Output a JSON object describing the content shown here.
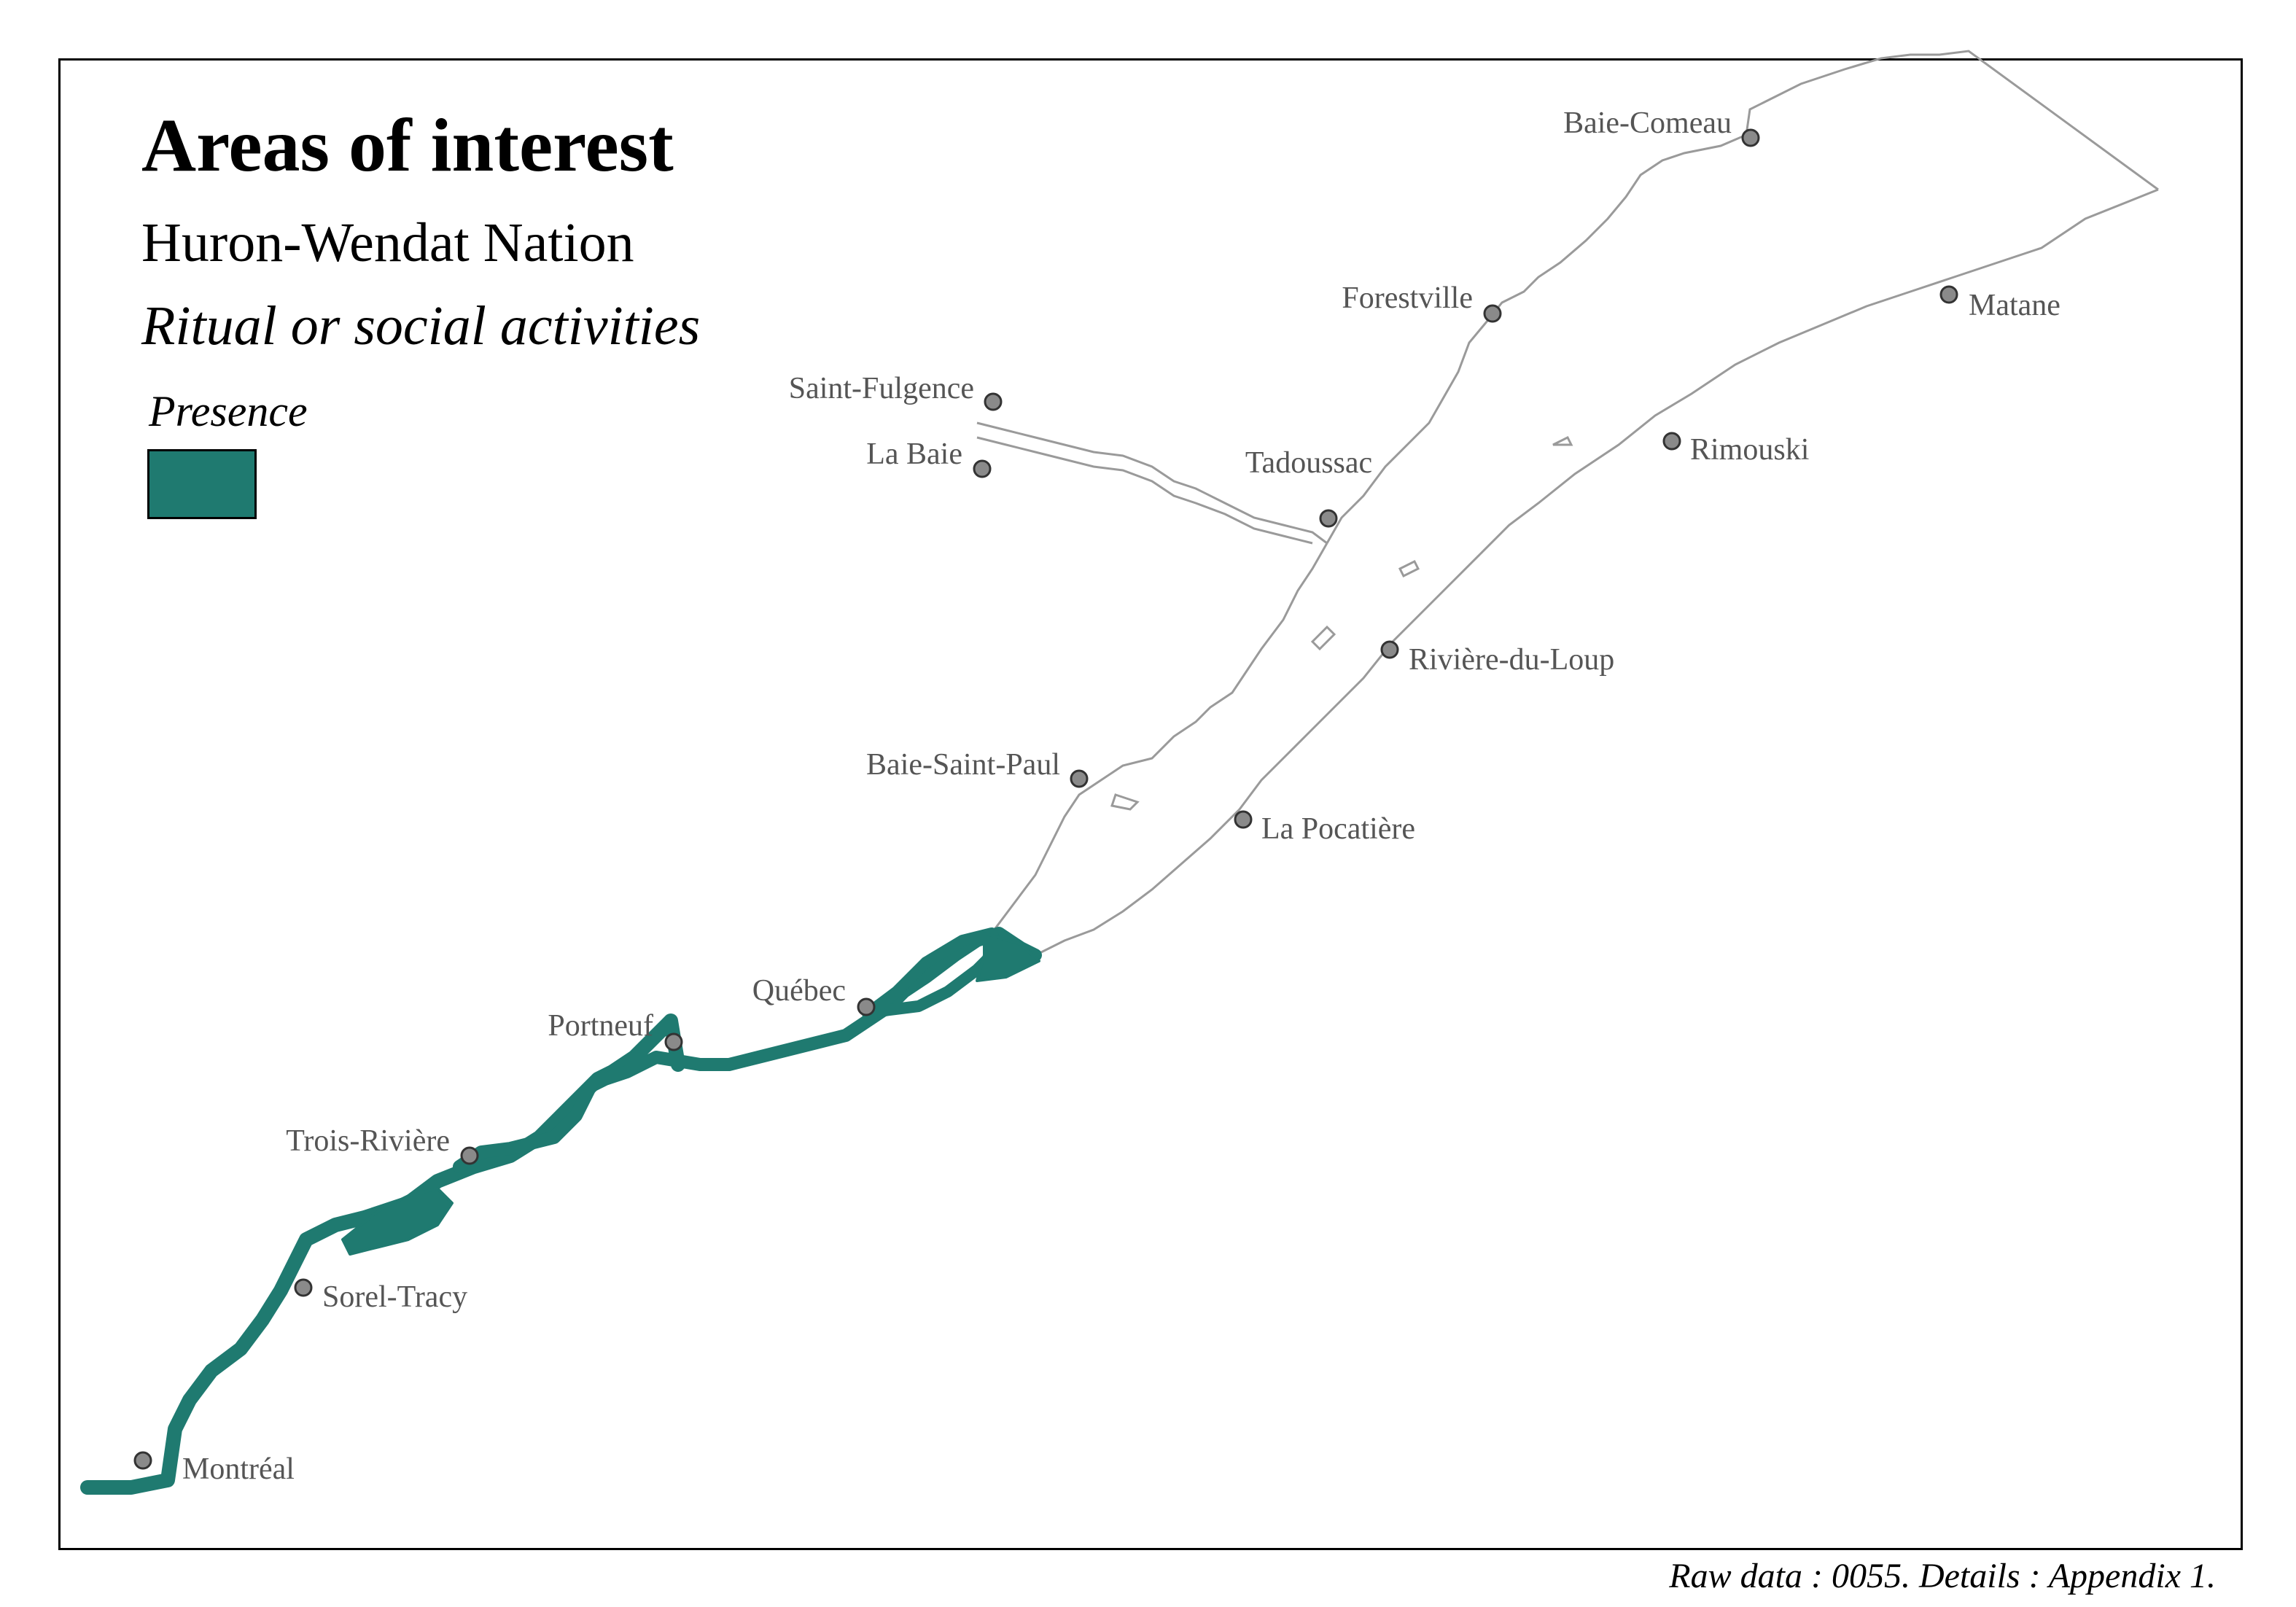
{
  "title": "Areas of interest",
  "subtitle": "Huron-Wendat Nation",
  "theme": "Ritual or social activities",
  "legend": {
    "title": "Presence",
    "color": "#1f7a70"
  },
  "footer": "Raw data : 0055. Details : Appendix 1.",
  "colors": {
    "presence_fill": "#1f7a70",
    "coastline": "#9a9a9a",
    "city_marker": "#8a8a8a",
    "city_label": "#555555"
  },
  "cities": [
    {
      "name": "Baie-Comeau"
    },
    {
      "name": "Forestville"
    },
    {
      "name": "Matane"
    },
    {
      "name": "Saint-Fulgence"
    },
    {
      "name": "La Baie"
    },
    {
      "name": "Tadoussac"
    },
    {
      "name": "Rimouski"
    },
    {
      "name": "Rivière-du-Loup"
    },
    {
      "name": "Baie-Saint-Paul"
    },
    {
      "name": "La Pocatière"
    },
    {
      "name": "Québec"
    },
    {
      "name": "Portneuf"
    },
    {
      "name": "Trois-Rivière"
    },
    {
      "name": "Sorel-Tracy"
    },
    {
      "name": "Montréal"
    }
  ]
}
